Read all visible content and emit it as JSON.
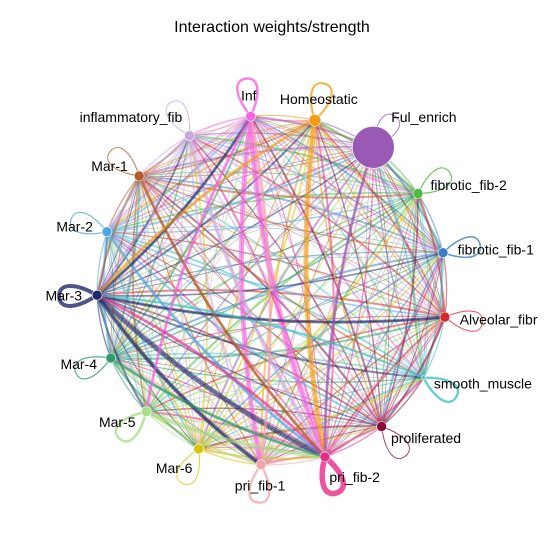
{
  "diagram": {
    "title": "Interaction weights/strength",
    "nodes": [
      {
        "id": "Inf",
        "label": "Inf",
        "color": "#F564E3",
        "size": 1.0
      },
      {
        "id": "Homeostatic",
        "label": "Homeostatic",
        "color": "#F39C12",
        "size": 1.2
      },
      {
        "id": "Ful_enrich",
        "label": "Ful_enrich",
        "color": "#9B59B6",
        "size": 4.2
      },
      {
        "id": "fibrotic_fib-2",
        "label": "fibrotic_fib-2",
        "color": "#4CB944",
        "size": 1.0
      },
      {
        "id": "fibrotic_fib-1",
        "label": "fibrotic_fib-1",
        "color": "#3A7FC1",
        "size": 1.0
      },
      {
        "id": "Alveolar_fibr",
        "label": "Alveolar_fibr",
        "color": "#D62728",
        "size": 1.0
      },
      {
        "id": "smooth_muscle",
        "label": "smooth_muscle",
        "color": "#40C4C4",
        "size": 0.4
      },
      {
        "id": "proliferated",
        "label": "proliferated",
        "color": "#8B0A3A",
        "size": 1.0
      },
      {
        "id": "pri_fib-2",
        "label": "pri_fib-2",
        "color": "#E7298A",
        "size": 1.0
      },
      {
        "id": "pri_fib-1",
        "label": "pri_fib-1",
        "color": "#F4A3A8",
        "size": 1.0
      },
      {
        "id": "Mar-6",
        "label": "Mar-6",
        "color": "#D9C400",
        "size": 1.0
      },
      {
        "id": "Mar-5",
        "label": "Mar-5",
        "color": "#A8DE88",
        "size": 1.0
      },
      {
        "id": "Mar-4",
        "label": "Mar-4",
        "color": "#2E9C6E",
        "size": 1.0
      },
      {
        "id": "Mar-3",
        "label": "Mar-3",
        "color": "#1F2A6B",
        "size": 1.0
      },
      {
        "id": "Mar-2",
        "label": "Mar-2",
        "color": "#4FA8E0",
        "size": 1.0
      },
      {
        "id": "Mar-1",
        "label": "Mar-1",
        "color": "#B45A2B",
        "size": 1.0
      },
      {
        "id": "inflammatory_fib",
        "label": "inflammatory_fib",
        "color": "#C8A8E0",
        "size": 1.0
      }
    ],
    "self_loops": [
      {
        "node": "Inf",
        "weight": 2.5
      },
      {
        "node": "Homeostatic",
        "weight": 2.0
      },
      {
        "node": "Ful_enrich",
        "weight": 1.0
      },
      {
        "node": "fibrotic_fib-2",
        "weight": 1.2
      },
      {
        "node": "fibrotic_fib-1",
        "weight": 1.6
      },
      {
        "node": "Alveolar_fibr",
        "weight": 1.0
      },
      {
        "node": "smooth_muscle",
        "weight": 2.4
      },
      {
        "node": "proliferated",
        "weight": 1.0
      },
      {
        "node": "pri_fib-2",
        "weight": 5.5
      },
      {
        "node": "pri_fib-1",
        "weight": 2.2
      },
      {
        "node": "Mar-6",
        "weight": 1.0
      },
      {
        "node": "Mar-5",
        "weight": 2.5
      },
      {
        "node": "Mar-4",
        "weight": 1.2
      },
      {
        "node": "Mar-3",
        "weight": 4.0
      },
      {
        "node": "Mar-2",
        "weight": 1.2
      },
      {
        "node": "Mar-1",
        "weight": 1.0
      },
      {
        "node": "inflammatory_fib",
        "weight": 1.0
      }
    ],
    "heavy_edges": [
      {
        "from": "Inf",
        "to": "pri_fib-2",
        "weight": 6
      },
      {
        "from": "Inf",
        "to": "pri_fib-1",
        "weight": 5
      },
      {
        "from": "Homeostatic",
        "to": "pri_fib-2",
        "weight": 5
      },
      {
        "from": "Mar-3",
        "to": "pri_fib-2",
        "weight": 5
      },
      {
        "from": "Mar-3",
        "to": "pri_fib-1",
        "weight": 4
      },
      {
        "from": "Mar-5",
        "to": "pri_fib-2",
        "weight": 4
      },
      {
        "from": "inflammatory_fib",
        "to": "pri_fib-2",
        "weight": 4
      },
      {
        "from": "Mar-2",
        "to": "pri_fib-2",
        "weight": 3
      },
      {
        "from": "Mar-3",
        "to": "Alveolar_fibr",
        "weight": 3
      },
      {
        "from": "Ful_enrich",
        "to": "pri_fib-2",
        "weight": 3
      },
      {
        "from": "pri_fib-1",
        "to": "Inf",
        "weight": 3
      },
      {
        "from": "Mar-3",
        "to": "Inf",
        "weight": 3
      },
      {
        "from": "Mar-1",
        "to": "pri_fib-2",
        "weight": 3
      },
      {
        "from": "Homeostatic",
        "to": "Mar-3",
        "weight": 3
      },
      {
        "from": "smooth_muscle",
        "to": "Mar-3",
        "weight": 2.5
      },
      {
        "from": "Mar-4",
        "to": "pri_fib-2",
        "weight": 3
      },
      {
        "from": "Inf",
        "to": "Mar-5",
        "weight": 3
      },
      {
        "from": "pri_fib-2",
        "to": "Mar-3",
        "weight": 3
      }
    ]
  }
}
